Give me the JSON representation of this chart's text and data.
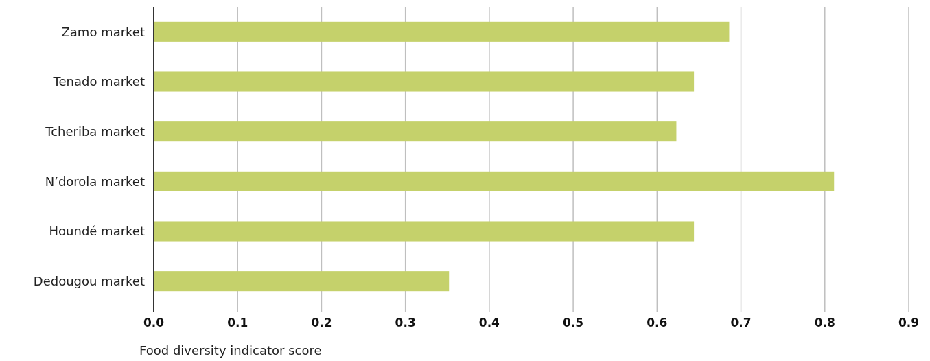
{
  "chart_data": {
    "type": "bar",
    "orientation": "horizontal",
    "xlabel": "Food diversity indicator score",
    "categories": [
      "Zamo market",
      "Tenado market",
      "Tcheriba market",
      "N’dorola market",
      "Houndé market",
      "Dedougou market"
    ],
    "values": [
      0.686,
      0.644,
      0.623,
      0.811,
      0.644,
      0.352
    ],
    "color": "#c5d16b",
    "xlim": [
      0,
      0.9
    ],
    "xticks": [
      {
        "value": 0,
        "label": "0.0"
      },
      0.1,
      0.2,
      0.3,
      0.4,
      0.5,
      0.6,
      0.7,
      0.8,
      0.9
    ],
    "grid": "x"
  }
}
